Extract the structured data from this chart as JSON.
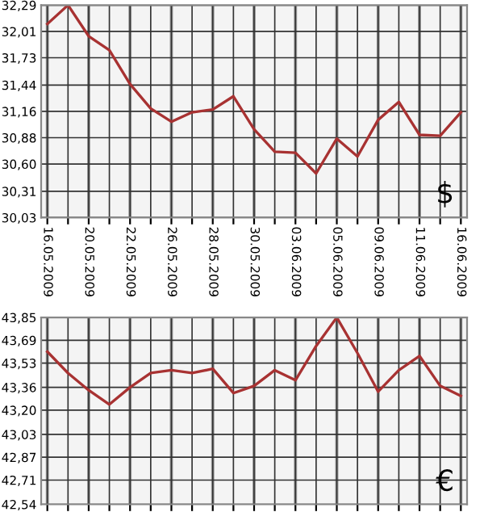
{
  "chart_data": [
    {
      "type": "line",
      "categories": [
        "16.05.2009",
        null,
        "20.05.2009",
        null,
        "22.05.2009",
        null,
        "26.05.2009",
        null,
        "28.05.2009",
        null,
        "30.05.2009",
        null,
        "03.06.2009",
        null,
        "05.06.2009",
        null,
        "09.06.2009",
        null,
        "11.06.2009",
        null,
        "16.06.2009"
      ],
      "series": [
        {
          "color": "#a83232",
          "values": [
            32.09,
            32.29,
            31.96,
            31.81,
            31.45,
            31.19,
            31.05,
            31.15,
            31.18,
            31.32,
            30.97,
            30.73,
            30.72,
            30.5,
            30.87,
            30.68,
            31.07,
            31.26,
            30.91,
            30.9,
            31.15
          ]
        }
      ],
      "ylim": [
        30.03,
        32.29
      ],
      "yticks": [
        {
          "value": 30.03,
          "label": "30,03"
        },
        {
          "value": 30.31,
          "label": "30,31"
        },
        {
          "value": 30.6,
          "label": "30,60"
        },
        {
          "value": 30.88,
          "label": "30,88"
        },
        {
          "value": 31.16,
          "label": "31,16"
        },
        {
          "value": 31.44,
          "label": "31,44"
        },
        {
          "value": 31.73,
          "label": "31,73"
        },
        {
          "value": 32.01,
          "label": "32,01"
        },
        {
          "value": 32.29,
          "label": "32,29"
        }
      ],
      "grid": true,
      "annotations": [
        "$"
      ]
    },
    {
      "type": "line",
      "categories": [
        "16.05.2009",
        null,
        "20.05.2009",
        null,
        "22.05.2009",
        null,
        "26.05.2009",
        null,
        "28.05.2009",
        null,
        "30.05.2009",
        null,
        "03.06.2009",
        null,
        "05.06.2009",
        null,
        "09.06.2009",
        null,
        "11.06.2009",
        null,
        "16.06.2009"
      ],
      "series": [
        {
          "color": "#a83232",
          "values": [
            43.61,
            43.46,
            43.34,
            43.24,
            43.36,
            43.46,
            43.48,
            43.46,
            43.49,
            43.32,
            43.37,
            43.48,
            43.41,
            43.65,
            43.85,
            43.6,
            43.33,
            43.48,
            43.58,
            43.37,
            43.3
          ]
        }
      ],
      "ylim": [
        42.54,
        43.85
      ],
      "yticks": [
        {
          "value": 42.54,
          "label": "42,54"
        },
        {
          "value": 42.71,
          "label": "42,71"
        },
        {
          "value": 42.87,
          "label": "42,87"
        },
        {
          "value": 43.03,
          "label": "43,03"
        },
        {
          "value": 43.2,
          "label": "43,20"
        },
        {
          "value": 43.36,
          "label": "43,36"
        },
        {
          "value": 43.53,
          "label": "43,53"
        },
        {
          "value": 43.69,
          "label": "43,69"
        },
        {
          "value": 43.85,
          "label": "43,85"
        }
      ],
      "grid": true,
      "tick_labels": "y",
      "annotations": [
        "€"
      ]
    }
  ]
}
